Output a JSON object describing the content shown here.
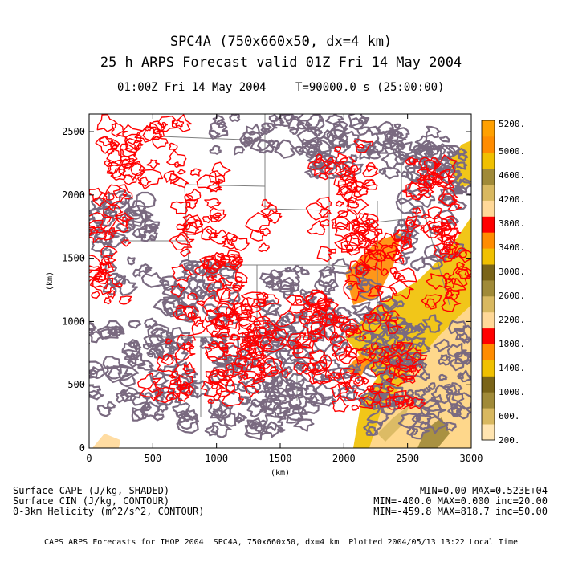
{
  "header": {
    "title_line1": "SPC4A (750x660x50, dx=4 km)",
    "title_line2": "25 h ARPS Forecast valid 01Z Fri 14 May 2004",
    "subtitle_left": "01:00Z Fri 14 May 2004",
    "subtitle_right": "T=90000.0 s (25:00:00)"
  },
  "fields": [
    {
      "name": "Surface CAPE (J/kg, SHADED)",
      "stats": "MIN=0.00 MAX=0.523E+04"
    },
    {
      "name": "Surface CIN (J/kg, CONTOUR)",
      "stats": "MIN=-400.0 MAX=0.000 inc=20.00"
    },
    {
      "name": "0-3km Helicity (m^2/s^2, CONTOUR)",
      "stats": "MIN=-459.8 MAX=818.7 inc=50.00"
    }
  ],
  "footer": "CAPS ARPS Forecasts for IHOP 2004  SPC4A, 750x660x50, dx=4 km  Plotted 2004/05/13 13:22 Local Time",
  "chart_data": {
    "type": "heatmap",
    "xlabel": "(km)",
    "ylabel": "(km)",
    "xlim": [
      0,
      3000
    ],
    "ylim": [
      0,
      2640
    ],
    "x_ticks": [
      0,
      500,
      1000,
      1500,
      2000,
      2500,
      3000
    ],
    "y_ticks": [
      0,
      500,
      1000,
      1500,
      2000,
      2500
    ],
    "colorbar": {
      "labels": [
        "200.",
        "600.",
        "1000.",
        "1400.",
        "1800.",
        "2200.",
        "2600.",
        "3000.",
        "3400.",
        "3800.",
        "4200.",
        "4600.",
        "5000.",
        "5200."
      ],
      "colors": [
        "#ffe4b0",
        "#d8b860",
        "#a08a38",
        "#7a6418",
        "#f0c000",
        "#ff8c00",
        "#ff0000",
        "#ffd898",
        "#d8b860",
        "#a08a38",
        "#7a6418",
        "#f0c000",
        "#ff8c00",
        "#ff0000",
        "#ffd898",
        "#d8b860",
        "#a08a38",
        "#f0c000",
        "#ff8c00",
        "#ffa000"
      ]
    },
    "contour_colors": {
      "cin": "#7a6a80",
      "helicity": "#ff0000",
      "boundaries": "#808080"
    }
  }
}
